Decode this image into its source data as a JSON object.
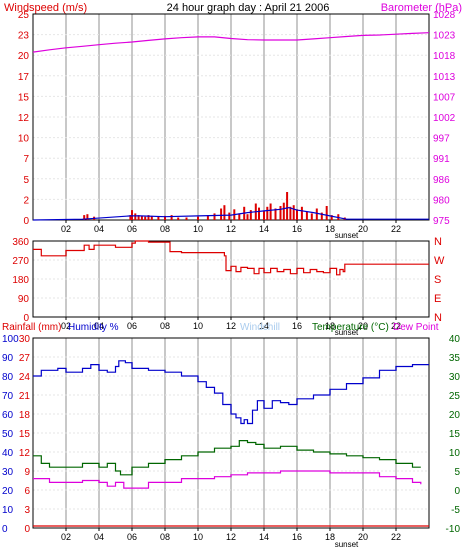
{
  "header": {
    "left_label": "Windspeed (m/s)",
    "title": "24 hour graph day : April 21 2006",
    "right_label": "Barometer (hPa)"
  },
  "colors": {
    "red": "#dd0000",
    "blue": "#0000cc",
    "magenta": "#dd00dd",
    "green": "#006600",
    "windchill": "#aaccee",
    "grid": "#c8c8c8",
    "frame": "#000000"
  },
  "chart_data": [
    {
      "id": "wind-barometer",
      "type": "bar",
      "title": "24 hour graph day : April 21 2006",
      "ylabel": "Windspeed (m/s)",
      "y2label": "Barometer (hPa)",
      "x_ticks": [
        "02",
        "04",
        "06",
        "08",
        "10",
        "12",
        "14",
        "16",
        "18",
        "20",
        "22"
      ],
      "x_tick_hours": [
        2,
        4,
        6,
        8,
        10,
        12,
        14,
        16,
        18,
        20,
        22
      ],
      "x_annotation": "sunset",
      "y_ticks": [
        "0",
        "2",
        "5",
        "7",
        "10",
        "12",
        "15",
        "17",
        "20",
        "23",
        "25"
      ],
      "y_ticks_right": [
        "975",
        "980",
        "986",
        "991",
        "997",
        "1002",
        "1007",
        "1013",
        "1018",
        "1023",
        "1028"
      ],
      "ylim": [
        0,
        25
      ],
      "y2lim": [
        975,
        1028
      ],
      "grid": true,
      "series": [
        {
          "name": "Windspeed (m/s)",
          "kind": "bar",
          "x": [
            3.1,
            3.3,
            3.7,
            5.9,
            6.0,
            6.2,
            6.4,
            6.6,
            6.8,
            7.0,
            7.2,
            7.6,
            8.0,
            8.4,
            8.8,
            9.3,
            10.0,
            10.6,
            11.0,
            11.4,
            11.6,
            11.9,
            12.2,
            12.5,
            12.8,
            13.0,
            13.2,
            13.5,
            13.7,
            14.0,
            14.2,
            14.4,
            14.7,
            15.0,
            15.2,
            15.4,
            15.6,
            15.8,
            16.0,
            16.3,
            16.6,
            16.9,
            17.2,
            17.5,
            17.8,
            18.1,
            18.5,
            18.9
          ],
          "values": [
            0.6,
            0.7,
            0.4,
            0.6,
            1.2,
            0.8,
            0.6,
            0.5,
            0.4,
            0.6,
            0.5,
            0.4,
            0.5,
            0.6,
            0.3,
            0.3,
            0.4,
            0.6,
            0.8,
            1.4,
            1.8,
            0.9,
            1.3,
            0.8,
            1.6,
            0.7,
            1.2,
            2.0,
            1.5,
            1.1,
            1.6,
            2.0,
            1.4,
            1.7,
            2.1,
            3.4,
            1.6,
            1.8,
            1.3,
            1.6,
            1.0,
            0.8,
            1.4,
            0.9,
            1.7,
            0.6,
            0.7,
            0.3
          ]
        },
        {
          "name": "Wind average",
          "kind": "line",
          "x": [
            0,
            3,
            5.9,
            6.5,
            8,
            10,
            12,
            13,
            14,
            15,
            15.5,
            16,
            17,
            18,
            19,
            24
          ],
          "values": [
            0,
            0.1,
            0.5,
            0.5,
            0.4,
            0.5,
            0.6,
            0.9,
            1.1,
            1.3,
            1.5,
            1.2,
            0.9,
            0.5,
            0.1,
            0.1
          ]
        },
        {
          "name": "Barometer (hPa)",
          "kind": "line",
          "axis": "right",
          "x": [
            0,
            1,
            2,
            3,
            4,
            5,
            6,
            7,
            8,
            9,
            10,
            11,
            12,
            13,
            14,
            15,
            16,
            17,
            18,
            19,
            20,
            21,
            22,
            23,
            24
          ],
          "values": [
            1018.2,
            1018.8,
            1019.3,
            1019.7,
            1020.1,
            1020.5,
            1020.8,
            1021.2,
            1021.6,
            1021.9,
            1022.1,
            1022.1,
            1021.7,
            1021.4,
            1021.3,
            1021.3,
            1021.3,
            1021.6,
            1021.9,
            1022.2,
            1022.5,
            1022.6,
            1022.8,
            1023.0,
            1023.2
          ]
        }
      ]
    },
    {
      "id": "wind-direction",
      "type": "line",
      "x_ticks": [
        "02",
        "04",
        "06",
        "08",
        "10",
        "12",
        "14",
        "16",
        "18",
        "20",
        "22"
      ],
      "x_tick_hours": [
        2,
        4,
        6,
        8,
        10,
        12,
        14,
        16,
        18,
        20,
        22
      ],
      "x_annotation": "sunset",
      "y_ticks": [
        "0",
        "90",
        "180",
        "270",
        "360"
      ],
      "y_ticks_right": [
        "N",
        "E",
        "S",
        "W",
        "N"
      ],
      "ylim": [
        0,
        360
      ],
      "grid": true,
      "series": [
        {
          "name": "Wind direction",
          "x": [
            0,
            0.3,
            0.5,
            1.0,
            1.8,
            2.0,
            3.0,
            3.1,
            3.4,
            3.5,
            3.7,
            4.8,
            5.0,
            6.0,
            6.2,
            6.6,
            7.0,
            8.0,
            8.3,
            9.0,
            10.0,
            11.0,
            11.6,
            11.7,
            12.0,
            12.3,
            12.6,
            13.0,
            13.4,
            13.7,
            14.0,
            14.4,
            14.8,
            15.2,
            15.6,
            16.0,
            16.4,
            16.8,
            17.2,
            17.6,
            18.0,
            18.4,
            18.6,
            18.8,
            18.9,
            24
          ],
          "values": [
            320,
            320,
            290,
            290,
            290,
            315,
            315,
            340,
            320,
            320,
            340,
            340,
            330,
            350,
            360,
            360,
            355,
            355,
            310,
            305,
            305,
            305,
            290,
            220,
            240,
            215,
            235,
            230,
            205,
            230,
            210,
            230,
            215,
            225,
            205,
            230,
            210,
            225,
            215,
            210,
            230,
            200,
            225,
            215,
            250,
            250
          ]
        }
      ]
    },
    {
      "id": "temp-humidity",
      "type": "line",
      "legend": [
        "Rainfall (mm)",
        "Humidity %",
        "Windchill",
        "Temperature (°C)",
        "Dew Point"
      ],
      "x_ticks": [
        "02",
        "04",
        "06",
        "08",
        "10",
        "12",
        "14",
        "16",
        "18",
        "20",
        "22"
      ],
      "x_tick_hours": [
        2,
        4,
        6,
        8,
        10,
        12,
        14,
        16,
        18,
        20,
        22
      ],
      "x_annotation": "sunset",
      "y_ticks_humidity": [
        "100",
        "90",
        "80",
        "70",
        "60",
        "50",
        "40",
        "30",
        "20",
        "10",
        "0"
      ],
      "y_ticks_rain": [
        "30",
        "27",
        "24",
        "21",
        "18",
        "15",
        "12",
        "9",
        "6",
        "3",
        "0"
      ],
      "y_ticks_right": [
        "40",
        "35",
        "30",
        "25",
        "20",
        "15",
        "10",
        "5",
        "0",
        "-5",
        "-10"
      ],
      "humidity_lim": [
        0,
        100
      ],
      "rain_lim": [
        0,
        30
      ],
      "temp_lim": [
        -10,
        40
      ],
      "grid": true,
      "series": [
        {
          "name": "Humidity %",
          "axis": "humidity",
          "x": [
            0,
            0.5,
            1,
            1.5,
            2,
            3,
            3.5,
            4,
            4.5,
            5,
            5.2,
            5.6,
            6,
            7,
            8,
            9,
            10,
            10.5,
            11,
            11.5,
            12,
            12.3,
            12.6,
            12.8,
            13.0,
            13.3,
            13.6,
            14,
            14.5,
            15,
            15.5,
            16,
            17,
            18,
            19,
            20,
            21,
            22,
            23,
            24
          ],
          "values": [
            80,
            83,
            83,
            84,
            82,
            84,
            86,
            83,
            82,
            85,
            88,
            87,
            84,
            83,
            82,
            80,
            77,
            74,
            71,
            65,
            60,
            58,
            55,
            57,
            55,
            62,
            67,
            63,
            67,
            66,
            65,
            68,
            70,
            73,
            76,
            79,
            83,
            85,
            86,
            86
          ]
        },
        {
          "name": "Temperature (°C)",
          "axis": "temp",
          "x": [
            0,
            0.5,
            1,
            2,
            3,
            4,
            4.5,
            5,
            5.3,
            5.6,
            6,
            7,
            8,
            9,
            10,
            11,
            12,
            12.5,
            13,
            13.5,
            14,
            15,
            16,
            17,
            18,
            19,
            20,
            21,
            22,
            23,
            23.5
          ],
          "values": [
            9,
            7,
            6,
            6,
            7,
            6,
            7,
            5,
            4,
            4,
            6,
            7,
            8,
            9,
            10,
            11,
            11.5,
            13,
            12.5,
            12,
            11,
            11.5,
            10.5,
            10,
            9.5,
            9,
            8.5,
            8,
            7,
            6,
            6
          ]
        },
        {
          "name": "Dew Point",
          "axis": "temp",
          "x": [
            0,
            1,
            2,
            3,
            4,
            4.5,
            5,
            5.5,
            6,
            7,
            8,
            9,
            10,
            11,
            12,
            13,
            14,
            15,
            16,
            17,
            18,
            19,
            20,
            21,
            22,
            23,
            23.5
          ],
          "values": [
            3,
            2,
            2,
            2.5,
            2,
            1,
            2,
            0.5,
            0.5,
            2,
            2,
            3,
            3,
            3.5,
            4,
            4.5,
            4.5,
            5,
            5,
            5,
            4.5,
            4.5,
            4.5,
            3.5,
            3,
            2,
            1.5
          ]
        },
        {
          "name": "Rainfall (mm)",
          "axis": "rain",
          "x": [
            0,
            24
          ],
          "values": [
            0,
            0
          ]
        }
      ]
    }
  ]
}
